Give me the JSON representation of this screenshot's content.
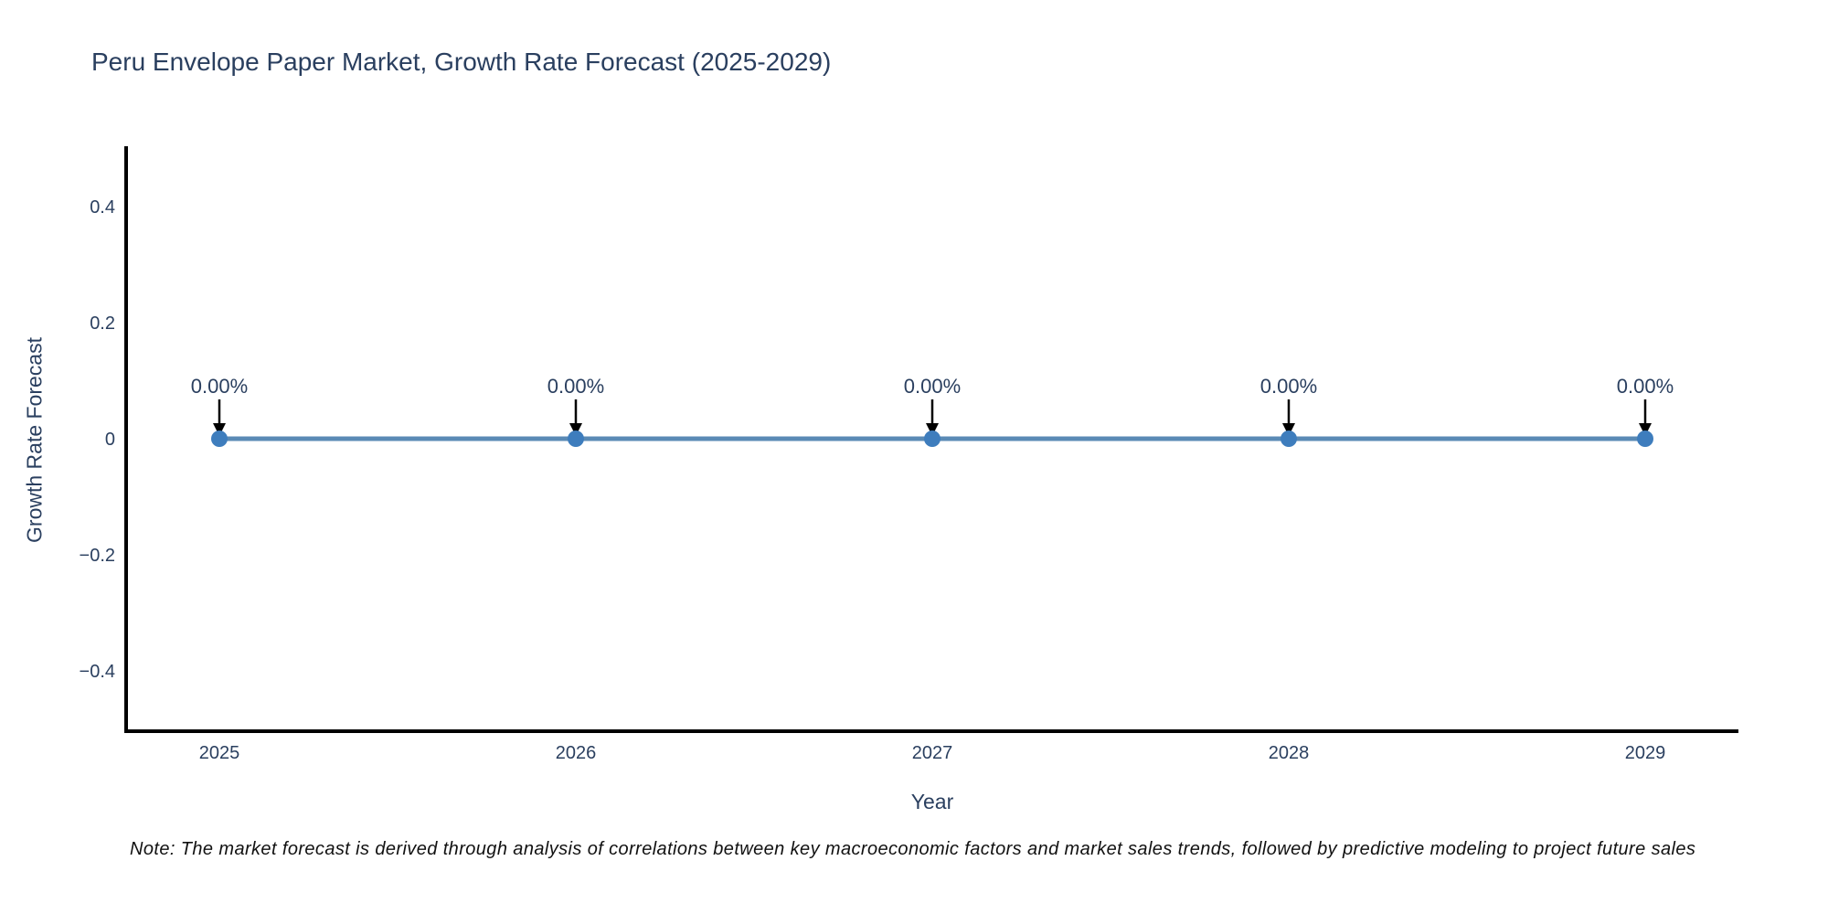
{
  "title": "Peru Envelope Paper Market, Growth Rate Forecast (2025-2029)",
  "note": "Note: The market forecast is derived through analysis of correlations between key macroeconomic factors and market sales trends, followed by predictive modeling to project future sales",
  "chart_data": {
    "type": "line",
    "title": "Peru Envelope Paper Market, Growth Rate Forecast (2025-2029)",
    "xlabel": "Year",
    "ylabel": "Growth Rate Forecast",
    "categories": [
      "2025",
      "2026",
      "2027",
      "2028",
      "2029"
    ],
    "series": [
      {
        "name": "Growth Rate Forecast",
        "values": [
          0,
          0,
          0,
          0,
          0
        ]
      }
    ],
    "point_labels": [
      "0.00%",
      "0.00%",
      "0.00%",
      "0.00%",
      "0.00%"
    ],
    "yticks": {
      "values": [
        0.4,
        0.2,
        0,
        -0.2,
        -0.4
      ],
      "labels": [
        "0.4",
        "0.2",
        "0",
        "−0.2",
        "−0.4"
      ]
    },
    "ylim": [
      -0.5,
      0.5
    ],
    "grid": false,
    "legend": "none",
    "annotation_arrows": true,
    "colors": {
      "line": "#5a8ab5",
      "marker": "#3e7dbd",
      "axis": "#000000",
      "text": "#2a3f5f",
      "arrow": "#000000",
      "note_text": "#111111"
    }
  }
}
